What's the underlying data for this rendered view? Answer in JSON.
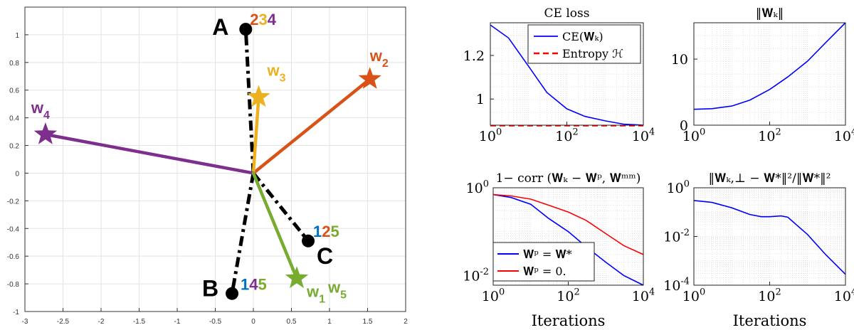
{
  "chart_data": [
    {
      "id": "main",
      "type": "scatter",
      "xlim": [
        -3,
        2
      ],
      "ylim": [
        -1,
        1.2
      ],
      "xticks": [
        "-3",
        "-2.5",
        "-2",
        "-1.5",
        "-1",
        "-0.5",
        "0",
        "0.5",
        "1",
        "1.5",
        "2"
      ],
      "yticks": [
        "-1",
        "-0.8",
        "-0.6",
        "-0.4",
        "-0.2",
        "0",
        "0.2",
        "0.4",
        "0.6",
        "0.8",
        "1"
      ],
      "grid": true,
      "origin": [
        0,
        0
      ],
      "vectors": [
        {
          "name": "w",
          "sub": "1",
          "x": 0.57,
          "y": -0.76,
          "color": "#77ac30",
          "label_at": "bottom-right"
        },
        {
          "name": "w",
          "sub": "2",
          "x": 1.53,
          "y": 0.68,
          "color": "#d95319",
          "label_at": "top"
        },
        {
          "name": "w",
          "sub": "3",
          "x": 0.07,
          "y": 0.55,
          "color": "#edb120",
          "label_at": "top-right"
        },
        {
          "name": "w",
          "sub": "4",
          "x": -2.73,
          "y": 0.28,
          "color": "#7e2f8e",
          "label_at": "top-left"
        },
        {
          "name": "w",
          "sub": "5",
          "x": 0.57,
          "y": -0.76,
          "color": "#77ac30",
          "label_at": "far-bottom-right"
        }
      ],
      "points": [
        {
          "name": "A",
          "x": -0.1,
          "y": 1.04,
          "digits": [
            {
              "d": "2",
              "color": "#d95319"
            },
            {
              "d": "3",
              "color": "#edb120"
            },
            {
              "d": "4",
              "color": "#7e2f8e"
            }
          ]
        },
        {
          "name": "B",
          "x": -0.28,
          "y": -0.87,
          "digits": [
            {
              "d": "1",
              "color": "#0072bd"
            },
            {
              "d": "4",
              "color": "#7e2f8e"
            },
            {
              "d": "5",
              "color": "#77ac30"
            }
          ]
        },
        {
          "name": "C",
          "x": 0.72,
          "y": -0.49,
          "digits": [
            {
              "d": "1",
              "color": "#0072bd"
            },
            {
              "d": "2",
              "color": "#d95319"
            },
            {
              "d": "5",
              "color": "#77ac30"
            }
          ]
        }
      ]
    },
    {
      "id": "ce_loss",
      "type": "line",
      "title": "CE loss",
      "xscale": "log",
      "xlim": [
        1,
        10000
      ],
      "ylim": [
        0.88,
        1.35
      ],
      "xticks": [
        {
          "base": "10",
          "exp": "0"
        },
        {
          "base": "10",
          "exp": "2"
        },
        {
          "base": "10",
          "exp": "4"
        }
      ],
      "yticks": [
        "1",
        "1.2"
      ],
      "legend": [
        "CE(𝐖ₖ)",
        "Entropy ℋ"
      ],
      "series": [
        {
          "name": "CE(𝐖ₖ)",
          "color": "#0000ff",
          "dash": false,
          "x": [
            1,
            3,
            10,
            30,
            100,
            300,
            1000,
            3000,
            10000
          ],
          "y": [
            1.34,
            1.28,
            1.15,
            1.03,
            0.955,
            0.92,
            0.9,
            0.885,
            0.88
          ]
        },
        {
          "name": "Entropy ℋ",
          "color": "#ff0000",
          "dash": true,
          "x": [
            1,
            10000
          ],
          "y": [
            0.878,
            0.878
          ]
        }
      ]
    },
    {
      "id": "norm",
      "type": "line",
      "title": "‖𝐖ₖ‖",
      "xscale": "log",
      "xlim": [
        1,
        10000
      ],
      "ylim": [
        0,
        15.5
      ],
      "xticks": [
        {
          "base": "10",
          "exp": "0"
        },
        {
          "base": "10",
          "exp": "2"
        },
        {
          "base": "10",
          "exp": "4"
        }
      ],
      "yticks": [
        "0",
        "10"
      ],
      "series": [
        {
          "name": "norm",
          "color": "#0000ff",
          "dash": false,
          "x": [
            1,
            3,
            10,
            30,
            100,
            300,
            1000,
            3000,
            10000
          ],
          "y": [
            2.4,
            2.5,
            2.9,
            3.8,
            5.4,
            7.3,
            9.7,
            12.5,
            15.5
          ]
        }
      ]
    },
    {
      "id": "corr",
      "type": "line",
      "title": "1− corr (𝐖ₖ − 𝐖ᵖ, 𝐖ᵐᵐ)",
      "xscale": "log",
      "yscale": "log",
      "xlim": [
        1,
        10000
      ],
      "ylim": [
        0.006,
        1
      ],
      "xticks": [
        {
          "base": "10",
          "exp": "0"
        },
        {
          "base": "10",
          "exp": "2"
        },
        {
          "base": "10",
          "exp": "4"
        }
      ],
      "yticks": [
        {
          "base": "10",
          "exp": "-2",
          "val": 0.01
        },
        {
          "base": "10",
          "exp": "0",
          "val": 1
        }
      ],
      "xlabel": "Iterations",
      "legend": [
        "𝐖ᵖ = 𝐖*",
        "𝐖ᵖ = 0."
      ],
      "series": [
        {
          "name": "𝐖ᵖ = 𝐖*",
          "color": "#0000ff",
          "dash": false,
          "x": [
            1,
            3,
            10,
            30,
            100,
            300,
            1000,
            3000,
            10000
          ],
          "y": [
            0.7,
            0.6,
            0.42,
            0.2,
            0.1,
            0.045,
            0.02,
            0.01,
            0.006
          ]
        },
        {
          "name": "𝐖ᵖ = 0.",
          "color": "#ff0000",
          "dash": false,
          "x": [
            1,
            3,
            10,
            30,
            100,
            300,
            1000,
            3000,
            10000
          ],
          "y": [
            0.7,
            0.65,
            0.55,
            0.4,
            0.28,
            0.18,
            0.09,
            0.048,
            0.03
          ]
        }
      ]
    },
    {
      "id": "dist",
      "type": "line",
      "title": "‖𝐖ₖ,⊥ − 𝐖*‖²/‖𝐖*‖²",
      "xscale": "log",
      "yscale": "log",
      "xlim": [
        1,
        10000
      ],
      "ylim": [
        0.0001,
        1
      ],
      "xticks": [
        {
          "base": "10",
          "exp": "0"
        },
        {
          "base": "10",
          "exp": "2"
        },
        {
          "base": "10",
          "exp": "4"
        }
      ],
      "yticks": [
        {
          "base": "10",
          "exp": "-4",
          "val": 0.0001
        },
        {
          "base": "10",
          "exp": "-2",
          "val": 0.01
        },
        {
          "base": "10",
          "exp": "0",
          "val": 1
        }
      ],
      "xlabel": "Iterations",
      "series": [
        {
          "name": "dist",
          "color": "#0000ff",
          "dash": false,
          "x": [
            1,
            3,
            10,
            30,
            60,
            100,
            200,
            300,
            1000,
            3000,
            10000
          ],
          "y": [
            0.3,
            0.25,
            0.15,
            0.08,
            0.065,
            0.065,
            0.07,
            0.062,
            0.012,
            0.0018,
            0.00028
          ]
        }
      ]
    }
  ]
}
